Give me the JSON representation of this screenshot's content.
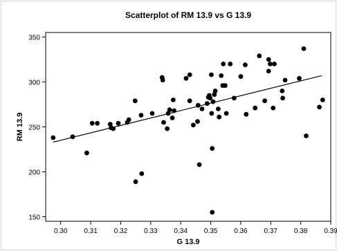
{
  "chart_data": {
    "type": "scatter",
    "title": "Scatterplot of RM 13.9 vs G 13.9",
    "xlabel": "G 13.9",
    "ylabel": "RM 13.9",
    "xlim": [
      0.295,
      0.39
    ],
    "ylim": [
      145,
      355
    ],
    "x_ticks": [
      0.3,
      0.31,
      0.32,
      0.33,
      0.34,
      0.35,
      0.36,
      0.37,
      0.38,
      0.39
    ],
    "x_tick_labels": [
      "0.30",
      "0.31",
      "0.32",
      "0.33",
      "0.34",
      "0.35",
      "0.36",
      "0.37",
      "0.38",
      "0.39"
    ],
    "y_ticks": [
      150,
      200,
      250,
      300,
      350
    ],
    "y_tick_labels": [
      "150",
      "200",
      "250",
      "300",
      "350"
    ],
    "grid": false,
    "legend": "none",
    "marker_color": "#000000",
    "fit_line": {
      "x": [
        0.2975,
        0.387
      ],
      "y": [
        233,
        307
      ]
    },
    "points": [
      {
        "x": 0.2975,
        "y": 238
      },
      {
        "x": 0.304,
        "y": 239
      },
      {
        "x": 0.3087,
        "y": 221
      },
      {
        "x": 0.3105,
        "y": 254
      },
      {
        "x": 0.3122,
        "y": 254
      },
      {
        "x": 0.3165,
        "y": 253
      },
      {
        "x": 0.3168,
        "y": 249
      },
      {
        "x": 0.3175,
        "y": 248
      },
      {
        "x": 0.3192,
        "y": 254
      },
      {
        "x": 0.3222,
        "y": 255
      },
      {
        "x": 0.3227,
        "y": 258
      },
      {
        "x": 0.3248,
        "y": 279
      },
      {
        "x": 0.325,
        "y": 189
      },
      {
        "x": 0.3268,
        "y": 263
      },
      {
        "x": 0.327,
        "y": 198
      },
      {
        "x": 0.3305,
        "y": 265
      },
      {
        "x": 0.3338,
        "y": 305
      },
      {
        "x": 0.334,
        "y": 302
      },
      {
        "x": 0.3343,
        "y": 255
      },
      {
        "x": 0.3355,
        "y": 248
      },
      {
        "x": 0.3358,
        "y": 265
      },
      {
        "x": 0.3363,
        "y": 269
      },
      {
        "x": 0.3375,
        "y": 280
      },
      {
        "x": 0.3378,
        "y": 268
      },
      {
        "x": 0.3372,
        "y": 260
      },
      {
        "x": 0.3418,
        "y": 304
      },
      {
        "x": 0.343,
        "y": 308
      },
      {
        "x": 0.343,
        "y": 279
      },
      {
        "x": 0.3442,
        "y": 252
      },
      {
        "x": 0.3456,
        "y": 256
      },
      {
        "x": 0.3458,
        "y": 274
      },
      {
        "x": 0.3462,
        "y": 208
      },
      {
        "x": 0.3471,
        "y": 270
      },
      {
        "x": 0.3488,
        "y": 276
      },
      {
        "x": 0.3492,
        "y": 283
      },
      {
        "x": 0.3495,
        "y": 285
      },
      {
        "x": 0.3498,
        "y": 282
      },
      {
        "x": 0.3502,
        "y": 308
      },
      {
        "x": 0.3503,
        "y": 265
      },
      {
        "x": 0.3505,
        "y": 226
      },
      {
        "x": 0.3505,
        "y": 155
      },
      {
        "x": 0.3508,
        "y": 278
      },
      {
        "x": 0.3512,
        "y": 286
      },
      {
        "x": 0.3515,
        "y": 290
      },
      {
        "x": 0.3525,
        "y": 270
      },
      {
        "x": 0.3528,
        "y": 261
      },
      {
        "x": 0.3535,
        "y": 307
      },
      {
        "x": 0.354,
        "y": 296
      },
      {
        "x": 0.3542,
        "y": 320
      },
      {
        "x": 0.3548,
        "y": 296
      },
      {
        "x": 0.3552,
        "y": 265
      },
      {
        "x": 0.3565,
        "y": 320
      },
      {
        "x": 0.3578,
        "y": 282
      },
      {
        "x": 0.36,
        "y": 306
      },
      {
        "x": 0.3615,
        "y": 319
      },
      {
        "x": 0.3618,
        "y": 264
      },
      {
        "x": 0.3648,
        "y": 271
      },
      {
        "x": 0.3662,
        "y": 329
      },
      {
        "x": 0.368,
        "y": 279
      },
      {
        "x": 0.3693,
        "y": 325
      },
      {
        "x": 0.3693,
        "y": 312
      },
      {
        "x": 0.3698,
        "y": 320
      },
      {
        "x": 0.3708,
        "y": 271
      },
      {
        "x": 0.3712,
        "y": 320
      },
      {
        "x": 0.3738,
        "y": 290
      },
      {
        "x": 0.374,
        "y": 282
      },
      {
        "x": 0.3748,
        "y": 302
      },
      {
        "x": 0.3795,
        "y": 304
      },
      {
        "x": 0.381,
        "y": 337
      },
      {
        "x": 0.3818,
        "y": 240
      },
      {
        "x": 0.3862,
        "y": 272
      },
      {
        "x": 0.3873,
        "y": 280
      }
    ]
  }
}
